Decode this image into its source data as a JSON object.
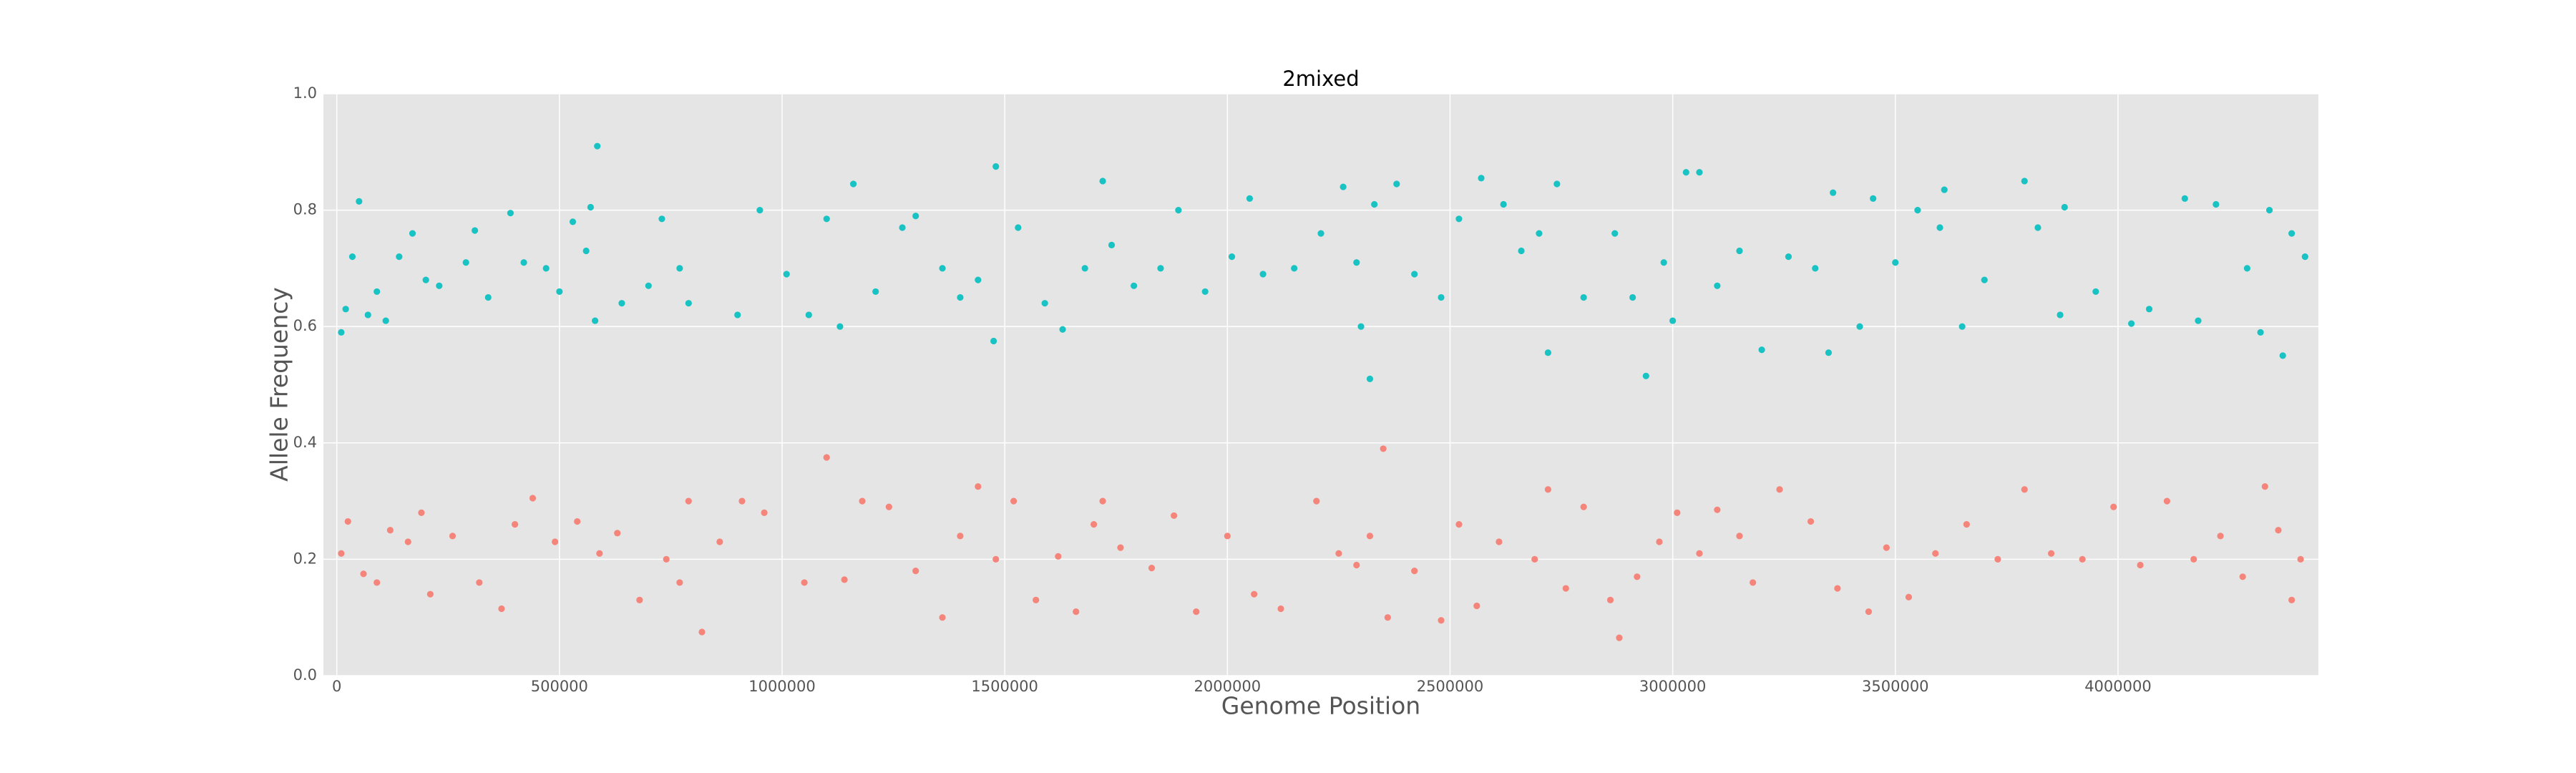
{
  "chart_data": {
    "type": "scatter",
    "title": "2mixed",
    "x_label": "Genome Position",
    "y_label": "Allele Frequency",
    "xlim": [
      -30000,
      4450000
    ],
    "ylim": [
      0,
      1
    ],
    "xticks": [
      0,
      500000,
      1000000,
      1500000,
      2000000,
      2500000,
      3000000,
      3500000,
      4000000
    ],
    "yticks": [
      {
        "value": 0,
        "label": "0.0"
      },
      {
        "value": 0.2,
        "label": "0.2"
      },
      {
        "value": 0.4,
        "label": "0.4"
      },
      {
        "value": 0.6,
        "label": "0.6"
      },
      {
        "value": 0.8,
        "label": "0.8"
      },
      {
        "value": 1,
        "label": "1.0"
      }
    ],
    "grid": true,
    "series": [
      {
        "color": "#19c3c3",
        "x": [
          10000,
          20000,
          35000,
          50000,
          70000,
          90000,
          110000,
          140000,
          170000,
          200000,
          230000,
          290000,
          310000,
          340000,
          390000,
          420000,
          470000,
          500000,
          530000,
          560000,
          570000,
          580000,
          585000,
          640000,
          700000,
          730000,
          770000,
          790000,
          900000,
          950000,
          1010000,
          1060000,
          1100000,
          1130000,
          1160000,
          1210000,
          1270000,
          1300000,
          1360000,
          1400000,
          1440000,
          1475000,
          1480000,
          1530000,
          1590000,
          1630000,
          1680000,
          1720000,
          1740000,
          1790000,
          1850000,
          1890000,
          1950000,
          2010000,
          2050000,
          2080000,
          2150000,
          2210000,
          2260000,
          2290000,
          2300000,
          2320000,
          2330000,
          2380000,
          2420000,
          2480000,
          2520000,
          2570000,
          2620000,
          2660000,
          2700000,
          2720000,
          2740000,
          2800000,
          2870000,
          2910000,
          2940000,
          2980000,
          3000000,
          3030000,
          3060000,
          3100000,
          3150000,
          3200000,
          3260000,
          3320000,
          3350000,
          3360000,
          3420000,
          3450000,
          3500000,
          3550000,
          3600000,
          3610000,
          3650000,
          3700000,
          3790000,
          3820000,
          3870000,
          3880000,
          3950000,
          4030000,
          4070000,
          4150000,
          4180000,
          4220000,
          4290000,
          4320000,
          4340000,
          4370000,
          4390000,
          4420000
        ],
        "values": [
          0.59,
          0.63,
          0.72,
          0.815,
          0.62,
          0.66,
          0.61,
          0.72,
          0.76,
          0.68,
          0.67,
          0.71,
          0.765,
          0.65,
          0.795,
          0.71,
          0.7,
          0.66,
          0.78,
          0.73,
          0.805,
          0.61,
          0.91,
          0.64,
          0.67,
          0.785,
          0.7,
          0.64,
          0.62,
          0.8,
          0.69,
          0.62,
          0.785,
          0.6,
          0.845,
          0.66,
          0.77,
          0.79,
          0.7,
          0.65,
          0.68,
          0.575,
          0.875,
          0.77,
          0.64,
          0.595,
          0.7,
          0.85,
          0.74,
          0.67,
          0.7,
          0.8,
          0.66,
          0.72,
          0.82,
          0.69,
          0.7,
          0.76,
          0.84,
          0.71,
          0.6,
          0.51,
          0.81,
          0.845,
          0.69,
          0.65,
          0.785,
          0.855,
          0.81,
          0.73,
          0.76,
          0.555,
          0.845,
          0.65,
          0.76,
          0.65,
          0.515,
          0.71,
          0.61,
          0.865,
          0.865,
          0.67,
          0.73,
          0.56,
          0.72,
          0.7,
          0.555,
          0.83,
          0.6,
          0.82,
          0.71,
          0.8,
          0.77,
          0.835,
          0.6,
          0.68,
          0.85,
          0.77,
          0.62,
          0.805,
          0.66,
          0.605,
          0.63,
          0.82,
          0.61,
          0.81,
          0.7,
          0.59,
          0.8,
          0.55,
          0.76,
          0.72
        ]
      },
      {
        "color": "#f5857a",
        "x": [
          10000,
          25000,
          60000,
          90000,
          120000,
          160000,
          190000,
          210000,
          260000,
          320000,
          370000,
          400000,
          440000,
          490000,
          540000,
          590000,
          630000,
          680000,
          740000,
          770000,
          790000,
          820000,
          860000,
          910000,
          960000,
          1050000,
          1100000,
          1140000,
          1180000,
          1240000,
          1300000,
          1360000,
          1400000,
          1440000,
          1480000,
          1520000,
          1570000,
          1620000,
          1660000,
          1700000,
          1720000,
          1760000,
          1830000,
          1880000,
          1930000,
          2000000,
          2060000,
          2120000,
          2200000,
          2250000,
          2290000,
          2320000,
          2350000,
          2360000,
          2420000,
          2480000,
          2520000,
          2560000,
          2610000,
          2690000,
          2720000,
          2760000,
          2800000,
          2860000,
          2880000,
          2920000,
          2970000,
          3010000,
          3060000,
          3100000,
          3150000,
          3180000,
          3240000,
          3310000,
          3370000,
          3440000,
          3480000,
          3530000,
          3590000,
          3660000,
          3730000,
          3790000,
          3850000,
          3920000,
          3990000,
          4050000,
          4110000,
          4170000,
          4230000,
          4280000,
          4330000,
          4360000,
          4390000,
          4410000
        ],
        "values": [
          0.21,
          0.265,
          0.175,
          0.16,
          0.25,
          0.23,
          0.28,
          0.14,
          0.24,
          0.16,
          0.115,
          0.26,
          0.305,
          0.23,
          0.265,
          0.21,
          0.245,
          0.13,
          0.2,
          0.16,
          0.3,
          0.075,
          0.23,
          0.3,
          0.28,
          0.16,
          0.375,
          0.165,
          0.3,
          0.29,
          0.18,
          0.1,
          0.24,
          0.325,
          0.2,
          0.3,
          0.13,
          0.205,
          0.11,
          0.26,
          0.3,
          0.22,
          0.185,
          0.275,
          0.11,
          0.24,
          0.14,
          0.115,
          0.3,
          0.21,
          0.19,
          0.24,
          0.39,
          0.1,
          0.18,
          0.095,
          0.26,
          0.12,
          0.23,
          0.2,
          0.32,
          0.15,
          0.29,
          0.13,
          0.065,
          0.17,
          0.23,
          0.28,
          0.21,
          0.285,
          0.24,
          0.16,
          0.32,
          0.265,
          0.15,
          0.11,
          0.22,
          0.135,
          0.21,
          0.26,
          0.2,
          0.32,
          0.21,
          0.2,
          0.29,
          0.19,
          0.3,
          0.2,
          0.24,
          0.17,
          0.325,
          0.25,
          0.13,
          0.2
        ]
      }
    ]
  }
}
